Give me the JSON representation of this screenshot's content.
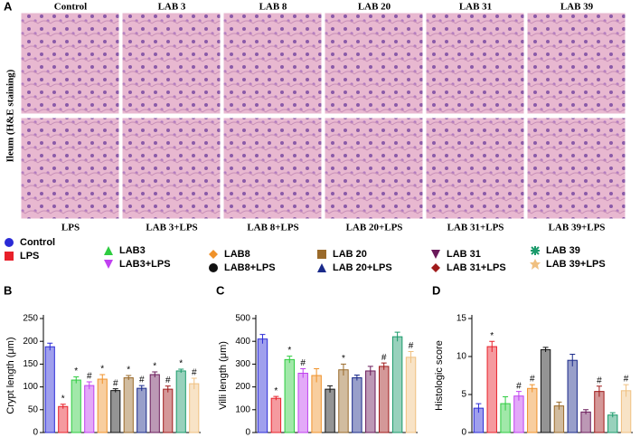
{
  "panel_a": {
    "letter": "A",
    "side_label": "Ileum (H&E staining)",
    "top_labels": [
      "Control",
      "LAB 3",
      "LAB 8",
      "LAB 20",
      "LAB 31",
      "LAB 39"
    ],
    "bottom_labels": [
      "LPS",
      "LAB 3+LPS",
      "LAB 8+LPS",
      "LAB 20+LPS",
      "LAB 31+LPS",
      "LAB 39+LPS"
    ]
  },
  "legend": [
    {
      "name": "Control",
      "color": "#2b2bd6",
      "marker": "circle"
    },
    {
      "name": "LPS",
      "color": "#e8202a",
      "marker": "square"
    },
    {
      "name": "LAB3",
      "color": "#2ecc40",
      "marker": "triangle"
    },
    {
      "name": "LAB3+LPS",
      "color": "#c040f0",
      "marker": "triangle-down"
    },
    {
      "name": "LAB8",
      "color": "#f0922a",
      "marker": "diamond"
    },
    {
      "name": "LAB8+LPS",
      "color": "#111111",
      "marker": "circle"
    },
    {
      "name": "LAB 20",
      "color": "#9a6a2a",
      "marker": "square"
    },
    {
      "name": "LAB 20+LPS",
      "color": "#1a2a8a",
      "marker": "triangle"
    },
    {
      "name": "LAB 31",
      "color": "#6a1a5a",
      "marker": "triangle-down"
    },
    {
      "name": "LAB 31+LPS",
      "color": "#a01a1a",
      "marker": "diamond"
    },
    {
      "name": "LAB 39",
      "color": "#1a9a6a",
      "marker": "asterisk"
    },
    {
      "name": "LAB 39+LPS",
      "color": "#f0c080",
      "marker": "star"
    }
  ],
  "chart_data": [
    {
      "type": "bar",
      "panel": "B",
      "y_label": "Crypt length (μm)",
      "categories": [
        null,
        null,
        null,
        null,
        null,
        null,
        null,
        null,
        null,
        null,
        null,
        null
      ],
      "values": [
        188,
        57,
        115,
        103,
        117,
        92,
        120,
        97,
        127,
        95,
        135,
        107
      ],
      "errors": [
        8,
        5,
        7,
        8,
        10,
        4,
        5,
        6,
        6,
        7,
        4,
        12
      ],
      "annotations": [
        null,
        "*",
        "*",
        "#",
        "*",
        "#",
        "*",
        "#",
        "*",
        "#",
        "*",
        "#"
      ],
      "ylim": [
        0,
        250
      ],
      "yticks": [
        0,
        50,
        100,
        150,
        200,
        250
      ]
    },
    {
      "type": "bar",
      "panel": "C",
      "y_label": "Villi length (μm)",
      "categories": [
        null,
        null,
        null,
        null,
        null,
        null,
        null,
        null,
        null,
        null,
        null,
        null
      ],
      "values": [
        410,
        150,
        320,
        260,
        250,
        190,
        275,
        240,
        270,
        290,
        420,
        330
      ],
      "errors": [
        20,
        8,
        15,
        20,
        30,
        15,
        25,
        12,
        20,
        15,
        20,
        25
      ],
      "annotations": [
        null,
        "*",
        "*",
        "#",
        null,
        null,
        "*",
        null,
        null,
        "#",
        null,
        "#"
      ],
      "ylim": [
        0,
        500
      ],
      "yticks": [
        0,
        100,
        200,
        300,
        400,
        500
      ]
    },
    {
      "type": "bar",
      "panel": "D",
      "y_label": "Histologic score",
      "categories": [
        null,
        null,
        null,
        null,
        null,
        null,
        null,
        null,
        null,
        null,
        null,
        null
      ],
      "values": [
        3.2,
        11.3,
        3.8,
        4.8,
        5.8,
        10.9,
        3.5,
        9.5,
        2.7,
        5.4,
        2.3,
        5.5
      ],
      "errors": [
        0.6,
        0.7,
        0.9,
        0.6,
        0.5,
        0.3,
        0.5,
        0.8,
        0.3,
        0.7,
        0.3,
        0.8
      ],
      "annotations": [
        null,
        "*",
        null,
        "#",
        "#",
        null,
        null,
        null,
        null,
        "#",
        null,
        "#"
      ],
      "ylim": [
        0,
        15
      ],
      "yticks": [
        0,
        5,
        10,
        15
      ]
    }
  ]
}
